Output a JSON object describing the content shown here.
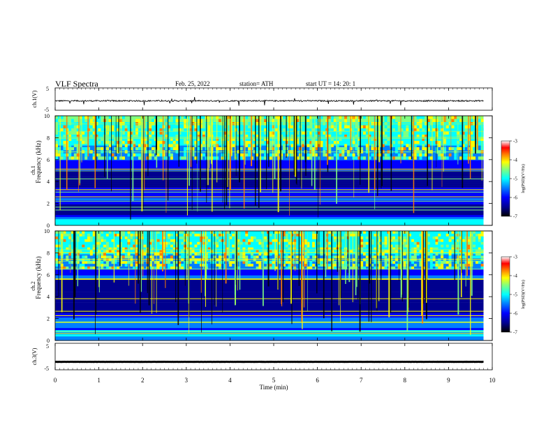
{
  "header": {
    "title": "VLF  Spectra",
    "date": "Feb. 25, 2022",
    "station": "station= ATH",
    "start": "start  UT  =    14: 20: 1"
  },
  "chart_data": [
    {
      "type": "line",
      "panel": "ch1-waveform",
      "ylabel": "ch.1(V)",
      "ylim": [
        -5,
        5
      ],
      "yticks": [
        5,
        -5
      ],
      "xlim": [
        0,
        10
      ],
      "baseline": -0.8,
      "noise_amplitude": 0.6
    },
    {
      "type": "heatmap",
      "panel": "ch1-spectrogram",
      "ylabel_top": "ch.1",
      "ylabel": "Frequency  (kHz)",
      "ylim": [
        0,
        10
      ],
      "yticks": [
        0,
        2,
        4,
        6,
        8,
        10
      ],
      "xlim": [
        0,
        10
      ],
      "data_end_min": 9.8,
      "quiet_bands_khz": [
        [
          3.5,
          5.0
        ],
        [
          1.0,
          2.0
        ]
      ],
      "noisy_region_khz": [
        6.0,
        10.0
      ],
      "colorbar": {
        "label": "log(PSD)(V²/Hz)",
        "ticks": [
          -3,
          -4,
          -5,
          -6,
          -7
        ],
        "range": [
          -7,
          -3
        ]
      }
    },
    {
      "type": "heatmap",
      "panel": "ch2-spectrogram",
      "ylabel_top": "ch.2",
      "ylabel": "Frequency  (kHz)",
      "ylim": [
        0,
        10
      ],
      "yticks": [
        0,
        2,
        4,
        6,
        8,
        10
      ],
      "xlim": [
        0,
        10
      ],
      "data_end_min": 9.8,
      "quiet_bands_khz": [
        [
          2.5,
          5.5
        ]
      ],
      "noisy_region_khz": [
        6.5,
        10.0
      ],
      "colorbar": {
        "label": "log(PSD)(V²/Hz)",
        "ticks": [
          -3,
          -4,
          -5,
          -6,
          -7
        ],
        "range": [
          -7,
          -3
        ]
      }
    },
    {
      "type": "line",
      "panel": "ch3-waveform",
      "ylabel": "ch.3(V)",
      "ylim": [
        -5,
        5
      ],
      "yticks": [
        5,
        -5
      ],
      "xlim": [
        0,
        10
      ],
      "baseline": -2.0,
      "noise_amplitude": 0.05
    }
  ],
  "xaxis": {
    "label": "Time  (min)",
    "ticks": [
      0,
      1,
      2,
      3,
      4,
      5,
      6,
      7,
      8,
      9,
      10
    ]
  },
  "colors": {
    "jet": [
      "#000000",
      "#00008f",
      "#0000ff",
      "#0080ff",
      "#00ffff",
      "#80ff80",
      "#ffff00",
      "#ff8000",
      "#ff0000",
      "#ffffff"
    ]
  }
}
